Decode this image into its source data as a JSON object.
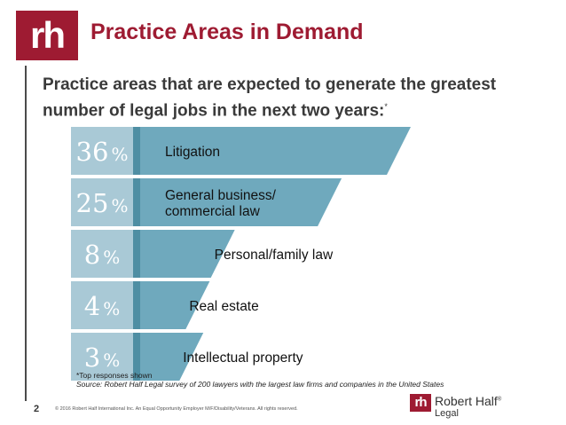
{
  "header": {
    "logo_text": "rh",
    "title": "Practice Areas in Demand"
  },
  "subtitle": {
    "text": "Practice areas that are expected to generate the greatest number of legal jobs in the next two years:",
    "marker": "*"
  },
  "chart_data": {
    "type": "bar",
    "orientation": "horizontal",
    "title": "",
    "categories": [
      "Litigation",
      "General business/ commercial law",
      "Personal/family law",
      "Real estate",
      "Intellectual property"
    ],
    "category_lines": [
      [
        "Litigation"
      ],
      [
        "General business/",
        "commercial law"
      ],
      [
        "Personal/family law"
      ],
      [
        "Real estate"
      ],
      [
        "Intellectual property"
      ]
    ],
    "values": [
      36,
      25,
      8,
      4,
      3
    ],
    "value_labels": [
      "36",
      "25",
      "8",
      "4",
      "3"
    ],
    "unit": "%",
    "colors": {
      "box": "#a9c9d6",
      "bar": "#6fa9bd",
      "shadow": "#4e8ea3",
      "number": "#ffffff",
      "label": "#111111"
    }
  },
  "footnote": {
    "note": "*Top responses shown",
    "source": "Source: Robert Half Legal survey of 200 lawyers with the largest law firms and companies in the United States"
  },
  "footer": {
    "page_number": "2",
    "copyright": "© 2016 Robert Half International Inc. An Equal Opportunity Employer M/F/Disability/Veterans. All rights reserved.",
    "brand_logo": "rh",
    "brand_name": "Robert Half",
    "brand_reg": "®",
    "brand_sub": "Legal"
  }
}
